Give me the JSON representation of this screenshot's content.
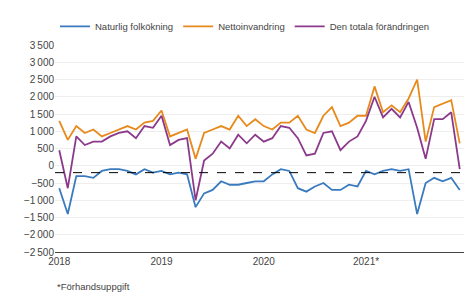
{
  "chart_data": {
    "type": "line",
    "footnote": "*Förhandsuppgift",
    "categories": [
      "2018",
      null,
      null,
      null,
      null,
      null,
      null,
      null,
      null,
      null,
      null,
      null,
      "2019",
      null,
      null,
      null,
      null,
      null,
      null,
      null,
      null,
      null,
      null,
      null,
      "2020",
      null,
      null,
      null,
      null,
      null,
      null,
      null,
      null,
      null,
      null,
      null,
      "2021*",
      null,
      null,
      null,
      null,
      null,
      null,
      null,
      null,
      null,
      null,
      null
    ],
    "series": [
      {
        "name": "Naturlig folkökning",
        "color": "#3a7abf",
        "values": [
          -650,
          -1400,
          -300,
          -300,
          -350,
          -150,
          -100,
          -100,
          -150,
          -250,
          -100,
          -200,
          -150,
          -250,
          -200,
          -250,
          -1200,
          -800,
          -700,
          -450,
          -550,
          -550,
          -500,
          -450,
          -450,
          -250,
          -100,
          -150,
          -650,
          -750,
          -600,
          -500,
          -700,
          -700,
          -550,
          -600,
          -150,
          -250,
          -150,
          -100,
          -150,
          -100,
          -1400,
          -500,
          -350,
          -450,
          -350,
          -700
        ]
      },
      {
        "name": "Nettoinvandring",
        "color": "#e8891c",
        "values": [
          1300,
          750,
          1150,
          950,
          1050,
          850,
          950,
          1050,
          1150,
          1050,
          1250,
          1300,
          1600,
          850,
          950,
          1050,
          200,
          950,
          1050,
          1150,
          1050,
          1450,
          1150,
          1350,
          1150,
          1050,
          1250,
          1250,
          1450,
          1050,
          950,
          1450,
          1700,
          1150,
          1250,
          1450,
          1450,
          2300,
          1550,
          1750,
          1550,
          1950,
          2500,
          700,
          1700,
          1800,
          1900,
          650
        ]
      },
      {
        "name": "Den totala förändringen",
        "color": "#8b3a8b",
        "values": [
          450,
          -650,
          850,
          600,
          700,
          700,
          850,
          950,
          1000,
          800,
          1150,
          1100,
          1450,
          600,
          750,
          800,
          -1000,
          150,
          350,
          700,
          500,
          900,
          650,
          900,
          700,
          800,
          1150,
          1100,
          800,
          300,
          350,
          950,
          1000,
          450,
          700,
          850,
          1300,
          2000,
          1400,
          1650,
          1400,
          1850,
          1100,
          200,
          1350,
          1350,
          1550,
          -100
        ]
      }
    ],
    "reference_line": -200,
    "ylim": [
      -2500,
      3500
    ],
    "yticks": [
      {
        "value": -2500,
        "label": "−2 500"
      },
      {
        "value": -2000,
        "label": "−2 000"
      },
      {
        "value": -1500,
        "label": "−1 500"
      },
      {
        "value": -1000,
        "label": "−1 000"
      },
      {
        "value": -500,
        "label": "−500"
      },
      0,
      500,
      {
        "value": 1000,
        "label": "1 000"
      },
      {
        "value": 1500,
        "label": "1 500"
      },
      {
        "value": 2000,
        "label": "2 000"
      },
      {
        "value": 2500,
        "label": "2 500"
      },
      {
        "value": 3000,
        "label": "3 000"
      },
      {
        "value": 3500,
        "label": "3 500"
      }
    ],
    "grid": true,
    "legend": "upper left"
  }
}
